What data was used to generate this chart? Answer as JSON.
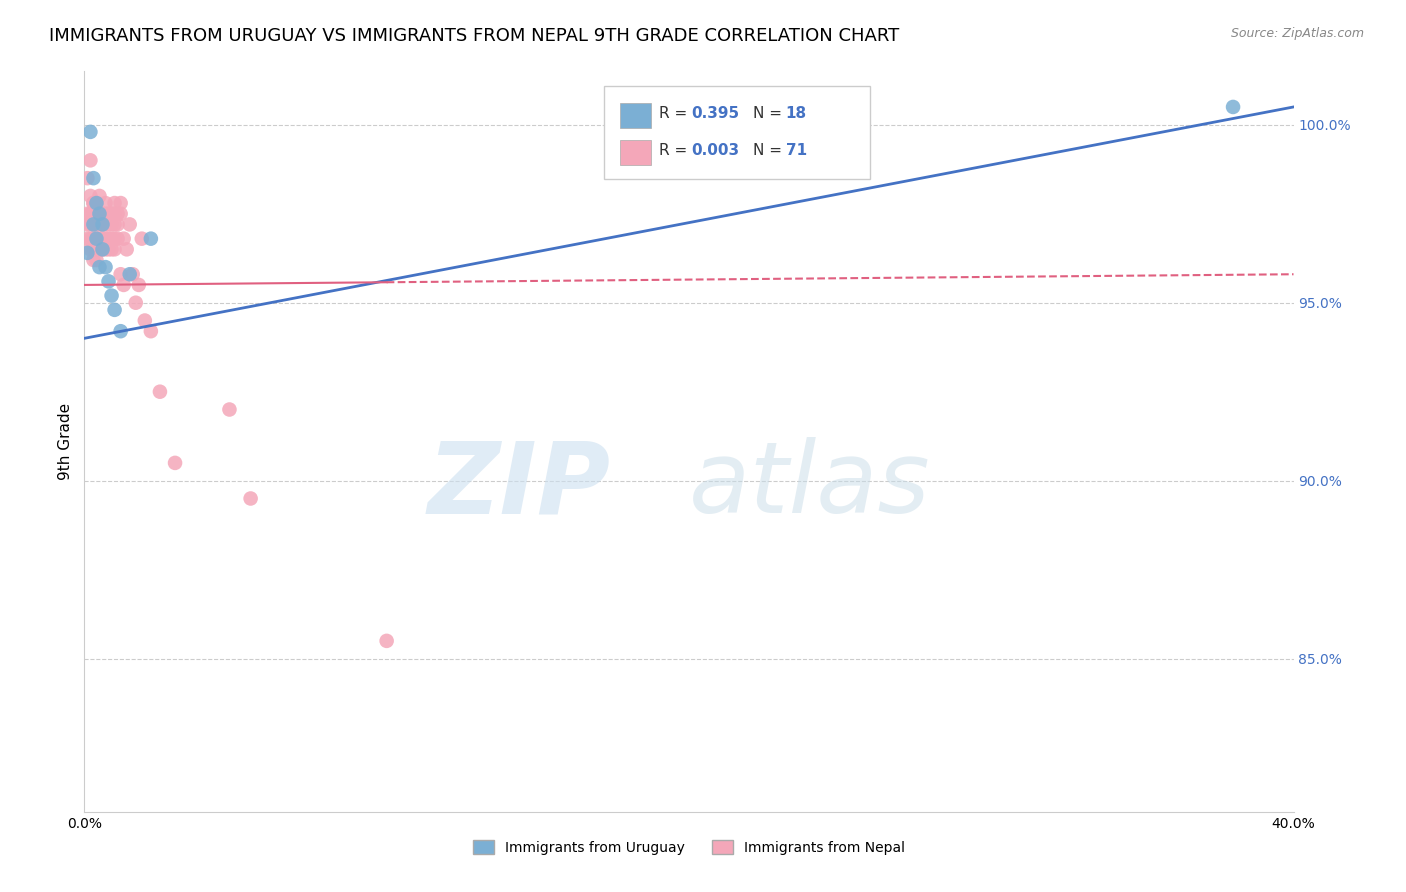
{
  "title": "IMMIGRANTS FROM URUGUAY VS IMMIGRANTS FROM NEPAL 9TH GRADE CORRELATION CHART",
  "source": "Source: ZipAtlas.com",
  "ylabel": "9th Grade",
  "legend_blue_label": "Immigrants from Uruguay",
  "legend_pink_label": "Immigrants from Nepal",
  "legend_blue_R": "0.395",
  "legend_blue_N": "18",
  "legend_pink_R": "0.003",
  "legend_pink_N": "71",
  "x_min": 0.0,
  "x_max": 0.4,
  "y_min": 0.807,
  "y_max": 1.015,
  "y_ticks": [
    0.85,
    0.9,
    0.95,
    1.0
  ],
  "y_tick_labels": [
    "85.0%",
    "90.0%",
    "95.0%",
    "100.0%"
  ],
  "x_ticks": [
    0.0,
    0.05,
    0.1,
    0.15,
    0.2,
    0.25,
    0.3,
    0.35,
    0.4
  ],
  "x_tick_labels": [
    "0.0%",
    "",
    "",
    "",
    "",
    "",
    "",
    "",
    "40.0%"
  ],
  "blue_color": "#7BAFD4",
  "pink_color": "#F4A7B9",
  "blue_line_color": "#4472C4",
  "pink_line_color": "#E06080",
  "title_fontsize": 13,
  "axis_label_fontsize": 11,
  "tick_fontsize": 10,
  "blue_scatter_x": [
    0.001,
    0.002,
    0.003,
    0.003,
    0.004,
    0.004,
    0.005,
    0.005,
    0.006,
    0.006,
    0.007,
    0.008,
    0.009,
    0.01,
    0.012,
    0.015,
    0.022,
    0.38
  ],
  "blue_scatter_y": [
    0.964,
    0.998,
    0.972,
    0.985,
    0.978,
    0.968,
    0.96,
    0.975,
    0.972,
    0.965,
    0.96,
    0.956,
    0.952,
    0.948,
    0.942,
    0.958,
    0.968,
    1.005
  ],
  "pink_scatter_x": [
    0.001,
    0.001,
    0.001,
    0.001,
    0.002,
    0.002,
    0.002,
    0.002,
    0.002,
    0.002,
    0.003,
    0.003,
    0.003,
    0.003,
    0.003,
    0.003,
    0.003,
    0.004,
    0.004,
    0.004,
    0.004,
    0.004,
    0.004,
    0.005,
    0.005,
    0.005,
    0.005,
    0.005,
    0.006,
    0.006,
    0.006,
    0.006,
    0.007,
    0.007,
    0.007,
    0.007,
    0.007,
    0.008,
    0.008,
    0.008,
    0.008,
    0.009,
    0.009,
    0.009,
    0.009,
    0.01,
    0.01,
    0.01,
    0.01,
    0.01,
    0.011,
    0.011,
    0.011,
    0.012,
    0.012,
    0.012,
    0.013,
    0.013,
    0.014,
    0.015,
    0.016,
    0.017,
    0.018,
    0.019,
    0.02,
    0.022,
    0.025,
    0.03,
    0.048,
    0.055,
    0.1
  ],
  "pink_scatter_y": [
    0.975,
    0.972,
    0.968,
    0.985,
    0.98,
    0.975,
    0.972,
    0.968,
    0.965,
    0.99,
    0.978,
    0.975,
    0.972,
    0.968,
    0.965,
    0.962,
    0.978,
    0.978,
    0.975,
    0.972,
    0.968,
    0.965,
    0.962,
    0.975,
    0.972,
    0.968,
    0.965,
    0.98,
    0.975,
    0.972,
    0.968,
    0.965,
    0.978,
    0.975,
    0.972,
    0.968,
    0.965,
    0.975,
    0.972,
    0.968,
    0.965,
    0.975,
    0.972,
    0.968,
    0.965,
    0.978,
    0.975,
    0.972,
    0.968,
    0.965,
    0.975,
    0.972,
    0.968,
    0.978,
    0.975,
    0.958,
    0.968,
    0.955,
    0.965,
    0.972,
    0.958,
    0.95,
    0.955,
    0.968,
    0.945,
    0.942,
    0.925,
    0.905,
    0.92,
    0.895,
    0.855
  ],
  "blue_trendline_x": [
    0.0,
    0.4
  ],
  "blue_trendline_y": [
    0.94,
    1.005
  ],
  "pink_trendline_x": [
    0.0,
    0.4
  ],
  "pink_trendline_y": [
    0.955,
    0.958
  ]
}
